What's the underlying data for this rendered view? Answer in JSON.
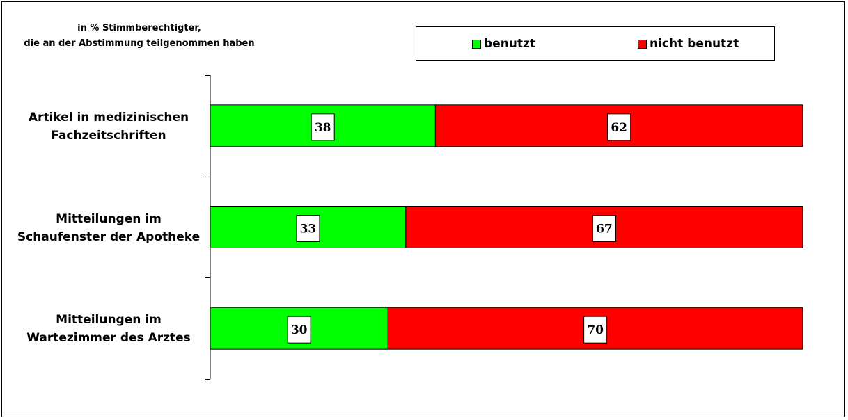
{
  "subtitle": {
    "line1": "in % Stimmberechtigter,",
    "line2": "die an der Abstimmung teilgenommen haben"
  },
  "legend": {
    "benutzt": "benutzt",
    "nicht_benutzt": "nicht benutzt"
  },
  "colors": {
    "benutzt": "#00ff00",
    "nicht_benutzt": "#ff0000",
    "label_box": "#ffffff"
  },
  "chart_data": {
    "type": "bar",
    "orientation": "horizontal",
    "stacked": true,
    "categories": [
      [
        "Artikel in medizinischen",
        "Fachzeitschriften"
      ],
      [
        "Mitteilungen im",
        "Schaufenster der Apotheke"
      ],
      [
        "Mitteilungen im",
        "Wartezimmer des Arztes"
      ]
    ],
    "series": [
      {
        "name": "benutzt",
        "values": [
          38,
          33,
          30
        ]
      },
      {
        "name": "nicht benutzt",
        "values": [
          62,
          67,
          70
        ]
      }
    ],
    "title": "",
    "subtitle": "in % Stimmberechtigter, die an der Abstimmung teilgenommen haben",
    "xlim": [
      0,
      100
    ],
    "grid": false,
    "legend_position": "top-right",
    "data_labels": true
  }
}
